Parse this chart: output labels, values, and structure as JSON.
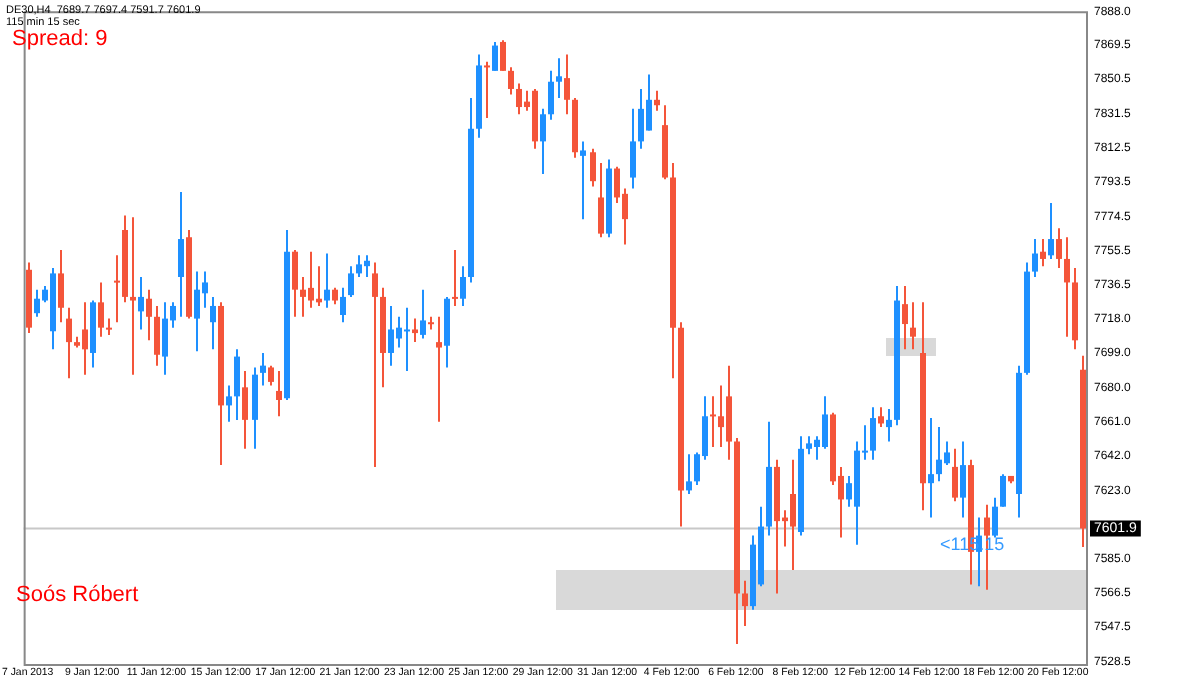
{
  "chart_data": {
    "type": "candlestick",
    "title": "DE30,H4  7689.7 7697.4 7591.7 7601.9",
    "subtitle": "115 min 15 sec",
    "annotations": [
      "Spread: 9",
      "<115.15",
      "Soós Róbert"
    ],
    "categories": [
      "7 Jan 2013",
      null,
      null,
      null,
      null,
      null,
      null,
      null,
      "9 Jan 12:00",
      null,
      null,
      null,
      null,
      null,
      null,
      null,
      "11 Jan 12:00",
      null,
      null,
      null,
      null,
      null,
      null,
      null,
      "15 Jan 12:00",
      null,
      null,
      null,
      null,
      null,
      null,
      null,
      "17 Jan 12:00",
      null,
      null,
      null,
      null,
      null,
      null,
      null,
      "21 Jan 12:00",
      null,
      null,
      null,
      null,
      null,
      null,
      null,
      "23 Jan 12:00",
      null,
      null,
      null,
      null,
      null,
      null,
      null,
      "25 Jan 12:00",
      null,
      null,
      null,
      null,
      null,
      null,
      null,
      "29 Jan 12:00",
      null,
      null,
      null,
      null,
      null,
      null,
      null,
      "31 Jan 12:00",
      null,
      null,
      null,
      null,
      null,
      null,
      null,
      "4 Feb 12:00",
      null,
      null,
      null,
      null,
      null,
      null,
      null,
      "6 Feb 12:00",
      null,
      null,
      null,
      null,
      null,
      null,
      null,
      "8 Feb 12:00",
      null,
      null,
      null,
      null,
      null,
      null,
      null,
      "12 Feb 12:00",
      null,
      null,
      null,
      null,
      null,
      null,
      null,
      "14 Feb 12:00",
      null,
      null,
      null,
      null,
      null,
      null,
      null,
      "18 Feb 12:00",
      null,
      null,
      null,
      null,
      null,
      null,
      null,
      "20 Feb 12:00",
      null,
      null,
      null
    ],
    "ohlc": [
      [
        7745,
        7749,
        7710,
        7713
      ],
      [
        7721,
        7734,
        7719,
        7729
      ],
      [
        7728,
        7736,
        7727,
        7734
      ],
      [
        7711,
        7746,
        7701,
        7743
      ],
      [
        7743,
        7756,
        7716,
        7724
      ],
      [
        7718,
        7724,
        7685,
        7705
      ],
      [
        7705,
        7708,
        7702,
        7703
      ],
      [
        7712,
        7727,
        7687,
        7701
      ],
      [
        7699,
        7728,
        7691,
        7727
      ],
      [
        7727,
        7738,
        7708,
        7713
      ],
      [
        7713,
        7718,
        7709,
        7712
      ],
      [
        7739,
        7753,
        7716,
        7738
      ],
      [
        7767,
        7775,
        7727,
        7730
      ],
      [
        7730,
        7774,
        7687,
        7728
      ],
      [
        7722,
        7741,
        7712,
        7730
      ],
      [
        7729,
        7734,
        7706,
        7719
      ],
      [
        7719,
        7725,
        7692,
        7698
      ],
      [
        7697,
        7727,
        7687,
        7718
      ],
      [
        7717,
        7727,
        7713,
        7725
      ],
      [
        7741,
        7788,
        7719,
        7762
      ],
      [
        7763,
        7767,
        7718,
        7719
      ],
      [
        7718,
        7744,
        7700,
        7734
      ],
      [
        7732,
        7744,
        7724,
        7738
      ],
      [
        7716,
        7730,
        7701,
        7725
      ],
      [
        7725,
        7727,
        7637,
        7670
      ],
      [
        7670,
        7681,
        7661,
        7675
      ],
      [
        7675,
        7701,
        7662,
        7697
      ],
      [
        7680,
        7689,
        7646,
        7662
      ],
      [
        7662,
        7691,
        7646,
        7687
      ],
      [
        7688,
        7699,
        7681,
        7692
      ],
      [
        7691,
        7692,
        7681,
        7683
      ],
      [
        7678,
        7689,
        7664,
        7673
      ],
      [
        7674,
        7767,
        7673,
        7755
      ],
      [
        7755,
        7756,
        7719,
        7734
      ],
      [
        7734,
        7741,
        7719,
        7730
      ],
      [
        7735,
        7755,
        7724,
        7728
      ],
      [
        7729,
        7747,
        7725,
        7727
      ],
      [
        7728,
        7754,
        7724,
        7734
      ],
      [
        7734,
        7735,
        7726,
        7728
      ],
      [
        7720,
        7735,
        7716,
        7730
      ],
      [
        7731,
        7747,
        7730,
        7743
      ],
      [
        7743,
        7753,
        7741,
        7748
      ],
      [
        7747,
        7753,
        7741,
        7750
      ],
      [
        7743,
        7749,
        7636,
        7730
      ],
      [
        7730,
        7735,
        7680,
        7699
      ],
      [
        7699,
        7725,
        7692,
        7712
      ],
      [
        7707,
        7719,
        7702,
        7713
      ],
      [
        7711,
        7724,
        7689,
        7712
      ],
      [
        7712,
        7718,
        7705,
        7710
      ],
      [
        7709,
        7734,
        7707,
        7717
      ],
      [
        7716,
        7719,
        7712,
        7715
      ],
      [
        7705,
        7719,
        7661,
        7702
      ],
      [
        7703,
        7730,
        7691,
        7729
      ],
      [
        7730,
        7756,
        7725,
        7729
      ],
      [
        7729,
        7747,
        7725,
        7741
      ],
      [
        7741,
        7840,
        7738,
        7823
      ],
      [
        7823,
        7864,
        7818,
        7858
      ],
      [
        7858,
        7860,
        7829,
        7857
      ],
      [
        7855,
        7871,
        7855,
        7869
      ],
      [
        7871,
        7872,
        7855,
        7855
      ],
      [
        7855,
        7857,
        7842,
        7845
      ],
      [
        7845,
        7848,
        7831,
        7835
      ],
      [
        7838,
        7844,
        7833,
        7835
      ],
      [
        7844,
        7845,
        7812,
        7816
      ],
      [
        7816,
        7834,
        7798,
        7831
      ],
      [
        7831,
        7855,
        7828,
        7849
      ],
      [
        7849,
        7862,
        7840,
        7852
      ],
      [
        7851,
        7864,
        7831,
        7839
      ],
      [
        7839,
        7840,
        7807,
        7810
      ],
      [
        7808,
        7816,
        7773,
        7811
      ],
      [
        7810,
        7812,
        7791,
        7794
      ],
      [
        7785,
        7804,
        7763,
        7765
      ],
      [
        7765,
        7806,
        7763,
        7801
      ],
      [
        7801,
        7802,
        7782,
        7785
      ],
      [
        7787,
        7790,
        7759,
        7773
      ],
      [
        7796,
        7834,
        7790,
        7816
      ],
      [
        7816,
        7845,
        7812,
        7834
      ],
      [
        7822,
        7853,
        7822,
        7839
      ],
      [
        7839,
        7844,
        7833,
        7836
      ],
      [
        7825,
        7836,
        7795,
        7796
      ],
      [
        7796,
        7804,
        7685,
        7713
      ],
      [
        7713,
        7716,
        7603,
        7623
      ],
      [
        7623,
        7643,
        7621,
        7628
      ],
      [
        7628,
        7644,
        7626,
        7643
      ],
      [
        7642,
        7675,
        7640,
        7664
      ],
      [
        7665,
        7675,
        7647,
        7664
      ],
      [
        7664,
        7681,
        7647,
        7658
      ],
      [
        7675,
        7692,
        7640,
        7650
      ],
      [
        7650,
        7652,
        7538,
        7566
      ],
      [
        7566,
        7573,
        7548,
        7559
      ],
      [
        7559,
        7598,
        7557,
        7593
      ],
      [
        7571,
        7614,
        7570,
        7603
      ],
      [
        7603,
        7661,
        7598,
        7636
      ],
      [
        7636,
        7640,
        7566,
        7606
      ],
      [
        7608,
        7612,
        7592,
        7606
      ],
      [
        7621,
        7640,
        7579,
        7603
      ],
      [
        7600,
        7653,
        7598,
        7646
      ],
      [
        7646,
        7653,
        7643,
        7649
      ],
      [
        7647,
        7653,
        7640,
        7651
      ],
      [
        7647,
        7675,
        7646,
        7665
      ],
      [
        7665,
        7666,
        7626,
        7628
      ],
      [
        7631,
        7636,
        7597,
        7618
      ],
      [
        7618,
        7631,
        7614,
        7627
      ],
      [
        7614,
        7650,
        7593,
        7645
      ],
      [
        7644,
        7659,
        7640,
        7645
      ],
      [
        7645,
        7669,
        7640,
        7663
      ],
      [
        7664,
        7669,
        7658,
        7660
      ],
      [
        7658,
        7668,
        7650,
        7662
      ],
      [
        7662,
        7736,
        7659,
        7728
      ],
      [
        7726,
        7736,
        7701,
        7715
      ],
      [
        7713,
        7727,
        7701,
        7708
      ],
      [
        7699,
        7727,
        7612,
        7627
      ],
      [
        7627,
        7663,
        7608,
        7632
      ],
      [
        7632,
        7658,
        7628,
        7640
      ],
      [
        7638,
        7650,
        7637,
        7644
      ],
      [
        7636,
        7646,
        7617,
        7619
      ],
      [
        7619,
        7650,
        7608,
        7637
      ],
      [
        7637,
        7640,
        7571,
        7589
      ],
      [
        7589,
        7608,
        7570,
        7598
      ],
      [
        7608,
        7615,
        7568,
        7598
      ],
      [
        7598,
        7619,
        7597,
        7614
      ],
      [
        7614,
        7632,
        7614,
        7631
      ],
      [
        7631,
        7631,
        7627,
        7628
      ],
      [
        7621,
        7692,
        7608,
        7688
      ],
      [
        7688,
        7749,
        7687,
        7744
      ],
      [
        7744,
        7762,
        7741,
        7754
      ],
      [
        7755,
        7762,
        7747,
        7751
      ],
      [
        7753,
        7782,
        7751,
        7762
      ],
      [
        7762,
        7768,
        7746,
        7751
      ],
      [
        7751,
        7763,
        7708,
        7738
      ],
      [
        7738,
        7746,
        7701,
        7706
      ],
      [
        7689.7,
        7697.4,
        7591.7,
        7601.9
      ]
    ],
    "colors": [
      "#f4553a",
      "#1e90ff",
      "#1e90ff",
      "#1e90ff",
      "#f4553a",
      "#f4553a",
      "#f4553a",
      "#f4553a",
      "#1e90ff",
      "#f4553a",
      "#f4553a",
      "#f4553a",
      "#f4553a",
      "#f4553a",
      "#1e90ff",
      "#f4553a",
      "#f4553a",
      "#1e90ff",
      "#1e90ff",
      "#1e90ff",
      "#f4553a",
      "#1e90ff",
      "#1e90ff",
      "#1e90ff",
      "#f4553a",
      "#1e90ff",
      "#1e90ff",
      "#f4553a",
      "#1e90ff",
      "#1e90ff",
      "#f4553a",
      "#f4553a",
      "#1e90ff",
      "#f4553a",
      "#f4553a",
      "#f4553a",
      "#f4553a",
      "#1e90ff",
      "#f4553a",
      "#1e90ff",
      "#1e90ff",
      "#1e90ff",
      "#1e90ff",
      "#f4553a",
      "#f4553a",
      "#1e90ff",
      "#1e90ff",
      "#1e90ff",
      "#f4553a",
      "#1e90ff",
      "#f4553a",
      "#f4553a",
      "#1e90ff",
      "#f4553a",
      "#1e90ff",
      "#1e90ff",
      "#1e90ff",
      "#f4553a",
      "#1e90ff",
      "#f4553a",
      "#f4553a",
      "#f4553a",
      "#f4553a",
      "#f4553a",
      "#1e90ff",
      "#1e90ff",
      "#1e90ff",
      "#f4553a",
      "#f4553a",
      "#1e90ff",
      "#f4553a",
      "#f4553a",
      "#1e90ff",
      "#f4553a",
      "#f4553a",
      "#1e90ff",
      "#1e90ff",
      "#1e90ff",
      "#f4553a",
      "#f4553a",
      "#f4553a",
      "#f4553a",
      "#1e90ff",
      "#1e90ff",
      "#1e90ff",
      "#f4553a",
      "#f4553a",
      "#f4553a",
      "#f4553a",
      "#f4553a",
      "#1e90ff",
      "#1e90ff",
      "#1e90ff",
      "#f4553a",
      "#f4553a",
      "#f4553a",
      "#1e90ff",
      "#1e90ff",
      "#1e90ff",
      "#1e90ff",
      "#f4553a",
      "#f4553a",
      "#1e90ff",
      "#1e90ff",
      "#1e90ff",
      "#1e90ff",
      "#f4553a",
      "#1e90ff",
      "#1e90ff",
      "#f4553a",
      "#f4553a",
      "#f4553a",
      "#1e90ff",
      "#1e90ff",
      "#1e90ff",
      "#f4553a",
      "#1e90ff",
      "#f4553a",
      "#1e90ff",
      "#f4553a",
      "#1e90ff",
      "#1e90ff",
      "#f4553a",
      "#1e90ff",
      "#1e90ff",
      "#1e90ff",
      "#f4553a",
      "#1e90ff",
      "#f4553a",
      "#f4553a",
      "#f4553a",
      "#f4553a"
    ],
    "ylim": [
      7527,
      7888
    ],
    "yticks": [
      {
        "value": 7888,
        "label": "7888.0"
      },
      {
        "value": 7869.5,
        "label": "7869.5"
      },
      {
        "value": 7850.5,
        "label": "7850.5"
      },
      {
        "value": 7831.5,
        "label": "7831.5"
      },
      {
        "value": 7812.5,
        "label": "7812.5"
      },
      {
        "value": 7793.5,
        "label": "7793.5"
      },
      {
        "value": 7774.5,
        "label": "7774.5"
      },
      {
        "value": 7755.5,
        "label": "7755.5"
      },
      {
        "value": 7736.5,
        "label": "7736.5"
      },
      {
        "value": 7718,
        "label": "7718.0"
      },
      {
        "value": 7699,
        "label": "7699.0"
      },
      {
        "value": 7680,
        "label": "7680.0"
      },
      {
        "value": 7661,
        "label": "7661.0"
      },
      {
        "value": 7642,
        "label": "7642.0"
      },
      {
        "value": 7623,
        "label": "7623.0"
      },
      {
        "value": 7585,
        "label": "7585.0"
      },
      {
        "value": 7566.5,
        "label": "7566.5"
      },
      {
        "value": 7547.5,
        "label": "7547.5"
      },
      {
        "value": 7528.5,
        "label": "7528.5"
      }
    ],
    "ref_lines": [
      {
        "axis": "y",
        "value": 7601.9,
        "label": "7601.9",
        "color": "#c8c8c8"
      }
    ],
    "legend": false
  }
}
